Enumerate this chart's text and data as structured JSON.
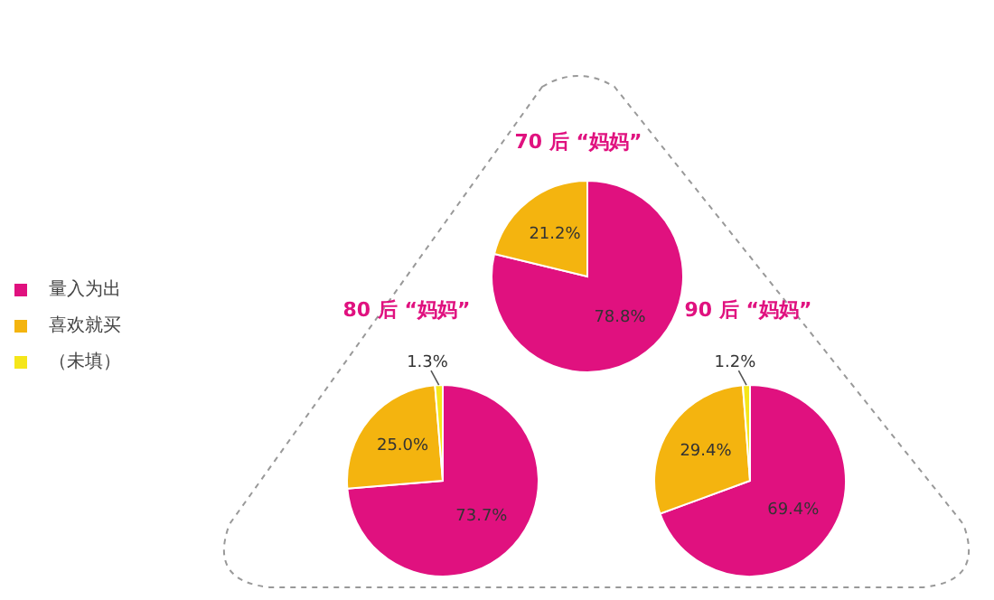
{
  "chart_data": [
    {
      "type": "pie",
      "title": "70 后 “妈妈”",
      "categories": [
        null,
        null
      ],
      "values": [
        78.8,
        21.2
      ],
      "colors": [
        "#e0117f",
        "#f4b40f"
      ],
      "value_labels": [
        "78.8%",
        "21.2%"
      ]
    },
    {
      "type": "pie",
      "title": "80 后 “妈妈”",
      "categories": [
        "量入为出",
        "喜欢就买",
        "（未填）"
      ],
      "values": [
        73.7,
        25.0,
        1.3
      ],
      "colors": [
        "#e0117f",
        "#f4b40f",
        "#f5e61a"
      ],
      "value_labels": [
        "73.7%",
        "25.0%",
        "1.3%"
      ],
      "legend": "left"
    },
    {
      "type": "pie",
      "title": "90 后 “妈妈”",
      "categories": [
        null,
        null,
        null
      ],
      "values": [
        69.4,
        29.4,
        1.2
      ],
      "colors": [
        "#e0117f",
        "#f4b40f",
        "#f5e61a"
      ],
      "value_labels": [
        "69.4%",
        "29.4%",
        "1.2%"
      ]
    }
  ]
}
